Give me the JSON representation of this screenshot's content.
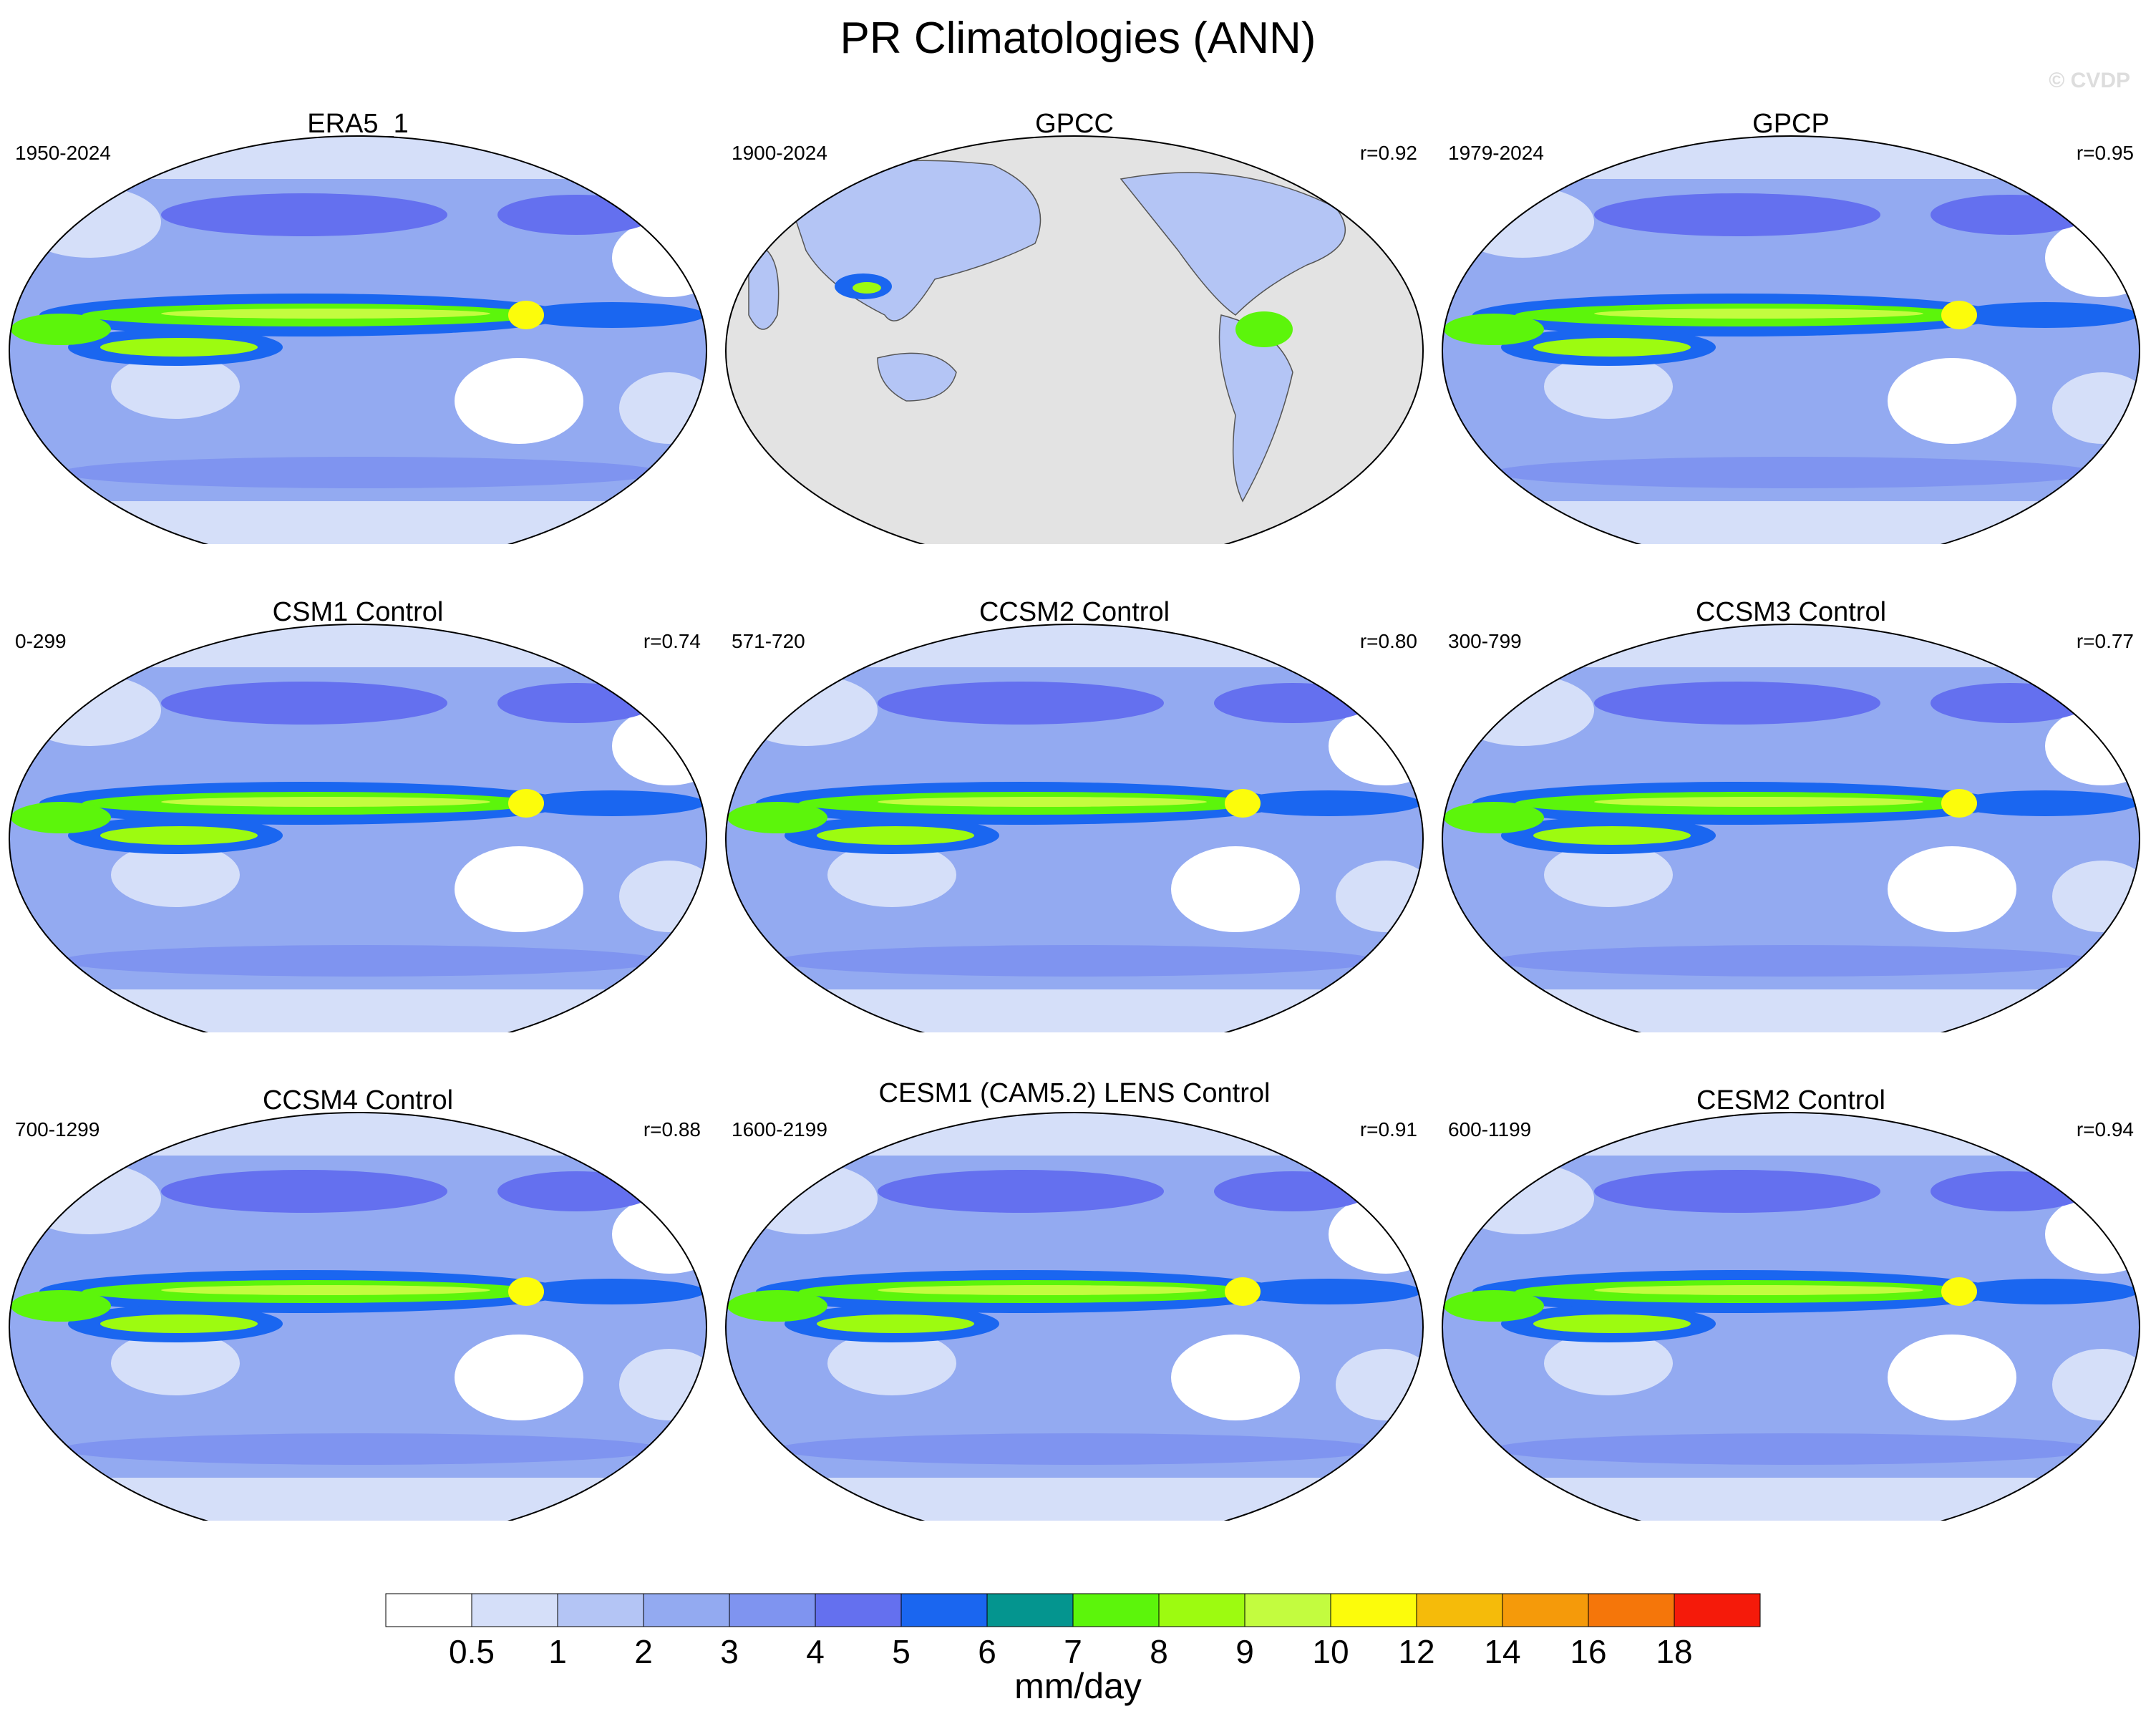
{
  "title": "PR Climatologies (ANN)",
  "watermark": "© CVDP",
  "chart_data": {
    "type": "heatmap",
    "title": "PR Climatologies (ANN)",
    "variable": "PR",
    "season": "ANN",
    "projection": "Robinson (Pacific-centered)",
    "colorbar": {
      "unit": "mm/day",
      "levels": [
        0.5,
        1,
        2,
        3,
        4,
        5,
        6,
        7,
        8,
        9,
        10,
        12,
        14,
        16,
        18
      ],
      "colors": [
        "#ffffff",
        "#d5dff9",
        "#b4c5f5",
        "#93aaf1",
        "#7f94f0",
        "#6470ef",
        "#1a66f0",
        "#04958f",
        "#5cf50b",
        "#9dfb10",
        "#c3fc3f",
        "#fcfc0b",
        "#f5bb0a",
        "#f59a0a",
        "#f5760a",
        "#f51a0a"
      ]
    },
    "panels": [
      {
        "name": "ERA5_1",
        "years": "1950-2024",
        "r": ""
      },
      {
        "name": "GPCC",
        "years": "1900-2024",
        "r": "r=0.92"
      },
      {
        "name": "GPCP",
        "years": "1979-2024",
        "r": "r=0.95"
      },
      {
        "name": "CSM1 Control",
        "years": "0-299",
        "r": "r=0.74"
      },
      {
        "name": "CCSM2 Control",
        "years": "571-720",
        "r": "r=0.80"
      },
      {
        "name": "CCSM3 Control",
        "years": "300-799",
        "r": "r=0.77"
      },
      {
        "name": "CCSM4 Control",
        "years": "700-1299",
        "r": "r=0.88"
      },
      {
        "name": "CESM1 (CAM5.2) LENS Control",
        "years": "1600-2199",
        "r": "r=0.91"
      },
      {
        "name": "CESM2 Control",
        "years": "600-1199",
        "r": "r=0.94"
      }
    ]
  }
}
